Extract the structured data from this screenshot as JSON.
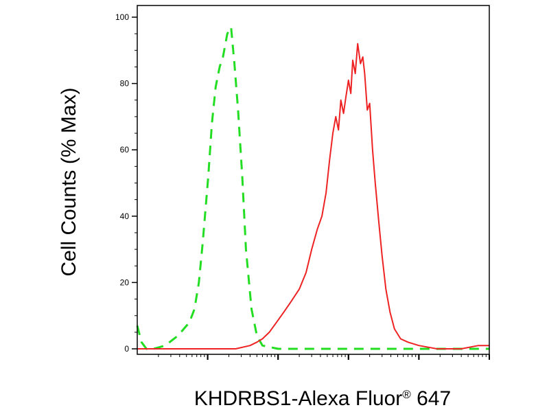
{
  "chart_data": {
    "type": "line",
    "title": "",
    "xlabel": "KHDRBS1-Alexa Fluor",
    "xlabel_mark": "®",
    "xlabel_suffix": " 647",
    "ylabel": "Cell Counts (% Max)",
    "x_scale": "log",
    "xlim": [
      1,
      100000
    ],
    "ylim": [
      0,
      100
    ],
    "y_ticks": [
      0,
      20,
      40,
      60,
      80,
      100
    ],
    "y_tick_labels": [
      "0",
      "20",
      "40",
      "60",
      "80",
      "100"
    ],
    "x_major_ticks": [
      10,
      100,
      1000,
      10000,
      100000
    ],
    "grid": false,
    "legend": "none",
    "series": [
      {
        "line_style": "dashed",
        "color": "#22dd22",
        "x": [
          1.0,
          1.15,
          1.35,
          1.7,
          2.5,
          3.8,
          5.5,
          6.5,
          7.5,
          8.5,
          10.2,
          11.5,
          13.0,
          14.8,
          16.5,
          19.0,
          21.5,
          24.0,
          27.0,
          31.0,
          35.0,
          42.0,
          50.0,
          60.0,
          100.0,
          1000.0,
          10000.0,
          100000.0
        ],
        "y": [
          7,
          2,
          0,
          0,
          1,
          4,
          8,
          12,
          20,
          32,
          52,
          68,
          79,
          85,
          88,
          95,
          97,
          86,
          72,
          52,
          30,
          12,
          4,
          1,
          0,
          0,
          0,
          0
        ]
      },
      {
        "line_style": "solid",
        "color": "#ee2222",
        "x": [
          1.0,
          5.0,
          10.0,
          15.0,
          25.0,
          40.0,
          50.0,
          60.0,
          75.0,
          95.0,
          120.0,
          150.0,
          200.0,
          250.0,
          300.0,
          360.0,
          420.0,
          480.0,
          540.0,
          600.0,
          660.0,
          720.0,
          780.0,
          850.0,
          920.0,
          1000.0,
          1080.0,
          1150.0,
          1250.0,
          1350.0,
          1480.0,
          1600.0,
          1700.0,
          1850.0,
          2000.0,
          2200.0,
          2400.0,
          2700.0,
          3000.0,
          3400.0,
          3900.0,
          4500.0,
          5500.0,
          7000.0,
          10000.0,
          18000.0,
          40000.0,
          70000.0,
          100000.0
        ],
        "y": [
          0,
          0,
          0,
          0,
          0,
          1,
          2,
          3,
          5,
          8,
          11,
          14,
          18,
          23,
          30,
          36,
          40,
          47,
          57,
          65,
          70,
          66,
          75,
          71,
          76,
          81,
          77,
          87,
          83,
          92,
          86,
          88,
          83,
          72,
          74,
          60,
          50,
          38,
          28,
          18,
          11,
          6,
          3,
          2,
          1,
          0,
          0,
          1,
          1
        ]
      }
    ]
  }
}
